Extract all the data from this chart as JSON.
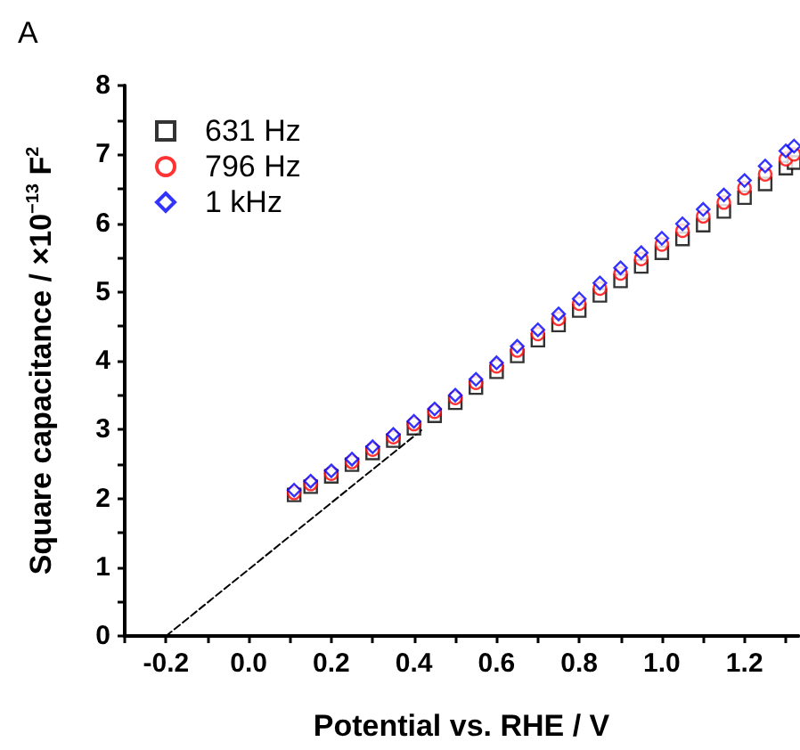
{
  "chart_data": {
    "type": "scatter",
    "xlabel": "Potential vs. RHE / V",
    "ylabel": "Square capacitance / ×10$^{−13}$ F$^{2}$",
    "annotations": [
      "A"
    ],
    "xlim": [
      -0.3,
      1.33
    ],
    "ylim": [
      0,
      8
    ],
    "xticks": [
      {
        "value": -0.3,
        "label": null
      },
      {
        "value": -0.2,
        "label": "-0.2"
      },
      {
        "value": -0.1,
        "label": null
      },
      {
        "value": 0,
        "label": "0.0"
      },
      {
        "value": 0.1,
        "label": null
      },
      {
        "value": 0.2,
        "label": "0.2"
      },
      {
        "value": 0.3,
        "label": null
      },
      {
        "value": 0.4,
        "label": "0.4"
      },
      {
        "value": 0.5,
        "label": null
      },
      {
        "value": 0.6,
        "label": "0.6"
      },
      {
        "value": 0.7,
        "label": null
      },
      {
        "value": 0.8,
        "label": "0.8"
      },
      {
        "value": 0.9,
        "label": null
      },
      {
        "value": 1,
        "label": "1.0"
      },
      {
        "value": 1.1,
        "label": null
      },
      {
        "value": 1.2,
        "label": "1.2"
      },
      {
        "value": 1.3,
        "label": null
      }
    ],
    "yticks": [
      0,
      {
        "value": 0.5,
        "label": null
      },
      1,
      {
        "value": 1.5,
        "label": null
      },
      2,
      {
        "value": 2.5,
        "label": null
      },
      3,
      {
        "value": 3.5,
        "label": null
      },
      4,
      {
        "value": 4.5,
        "label": null
      },
      5,
      {
        "value": 5.5,
        "label": null
      },
      6,
      {
        "value": 6.5,
        "label": null
      },
      7,
      {
        "value": 7.5,
        "label": null
      },
      8
    ],
    "grid": false,
    "legend": "top left",
    "x": [
      0.11,
      0.15,
      0.2,
      0.25,
      0.3,
      0.35,
      0.4,
      0.45,
      0.5,
      0.55,
      0.6,
      0.65,
      0.7,
      0.75,
      0.8,
      0.85,
      0.9,
      0.95,
      1.0,
      1.05,
      1.1,
      1.15,
      1.2,
      1.25,
      1.3,
      1.32
    ],
    "series": [
      {
        "name": "631 Hz",
        "color": "#000000",
        "marker": "square",
        "values": [
          2.05,
          2.17,
          2.32,
          2.49,
          2.66,
          2.84,
          3.02,
          3.2,
          3.39,
          3.61,
          3.84,
          4.07,
          4.3,
          4.52,
          4.73,
          4.95,
          5.16,
          5.37,
          5.57,
          5.77,
          5.97,
          6.17,
          6.37,
          6.57,
          6.8,
          6.88
        ]
      },
      {
        "name": "796 Hz",
        "color": "#ff0000",
        "marker": "circle",
        "values": [
          2.08,
          2.21,
          2.36,
          2.53,
          2.71,
          2.89,
          3.08,
          3.26,
          3.46,
          3.68,
          3.92,
          4.15,
          4.39,
          4.61,
          4.83,
          5.05,
          5.27,
          5.48,
          5.69,
          5.89,
          6.1,
          6.3,
          6.51,
          6.71,
          6.93,
          7.0
        ]
      },
      {
        "name": "1 kHz",
        "color": "#0000ff",
        "marker": "diamond",
        "values": [
          2.12,
          2.25,
          2.4,
          2.57,
          2.75,
          2.93,
          3.12,
          3.3,
          3.5,
          3.73,
          3.97,
          4.21,
          4.45,
          4.68,
          4.9,
          5.13,
          5.35,
          5.57,
          5.78,
          5.99,
          6.2,
          6.41,
          6.62,
          6.83,
          7.05,
          7.12
        ]
      },
      {
        "type": "line",
        "color": "#000000",
        "marker": "none",
        "line_style": "dashed",
        "x": [
          -0.2,
          0.42
        ],
        "values": [
          0,
          3.0
        ]
      }
    ]
  }
}
